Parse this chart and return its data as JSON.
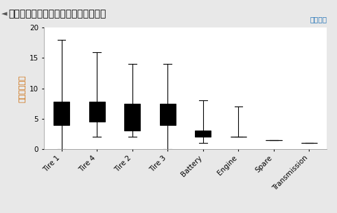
{
  "title": "◄按元件划分的系统总关闭时间的筱线图",
  "ylabel": "系统关闭时间",
  "export_label": "导出数据",
  "categories": [
    "Tire 1",
    "Tire 4",
    "Tire 2",
    "Tire 3",
    "Battery",
    "Engine",
    "Spare",
    "Transmission"
  ],
  "box_stats": [
    {
      "whislo": 0.0,
      "q1": 4.0,
      "med": 6.2,
      "q3": 7.8,
      "whishi": 18.0
    },
    {
      "whislo": 2.0,
      "q1": 4.5,
      "med": 6.2,
      "q3": 7.8,
      "whishi": 16.0
    },
    {
      "whislo": 2.0,
      "q1": 3.0,
      "med": 6.0,
      "q3": 7.5,
      "whishi": 14.0
    },
    {
      "whislo": 0.0,
      "q1": 4.0,
      "med": 6.2,
      "q3": 7.5,
      "whishi": 14.0
    },
    {
      "whislo": 1.0,
      "q1": 2.0,
      "med": 2.5,
      "q3": 3.0,
      "whishi": 8.0
    },
    {
      "whislo": 2.0,
      "q1": 2.0,
      "med": 2.0,
      "q3": 2.0,
      "whishi": 7.0
    },
    {
      "whislo": 1.5,
      "q1": 1.5,
      "med": 1.5,
      "q3": 1.5,
      "whishi": 1.5
    },
    {
      "whislo": 1.0,
      "q1": 1.0,
      "med": 1.0,
      "q3": 1.0,
      "whishi": 1.0
    }
  ],
  "ylim": [
    0,
    20
  ],
  "yticks": [
    0,
    5,
    10,
    15,
    20
  ],
  "box_facecolor": "#ffffff",
  "box_edge_color": "#000000",
  "whisker_color": "#000000",
  "median_color": "#000000",
  "cap_color": "#000000",
  "background_color": "#e8e8e8",
  "plot_bg_color": "#ffffff",
  "title_color": "#cc6600",
  "title_bg_color": "#d8d8d8",
  "ylabel_color": "#cc6600",
  "export_color": "#1a6eb5",
  "title_fontsize": 10,
  "ylabel_fontsize": 8,
  "tick_fontsize": 7.5,
  "export_fontsize": 7.5,
  "linewidth": 0.8,
  "box_width": 0.45
}
